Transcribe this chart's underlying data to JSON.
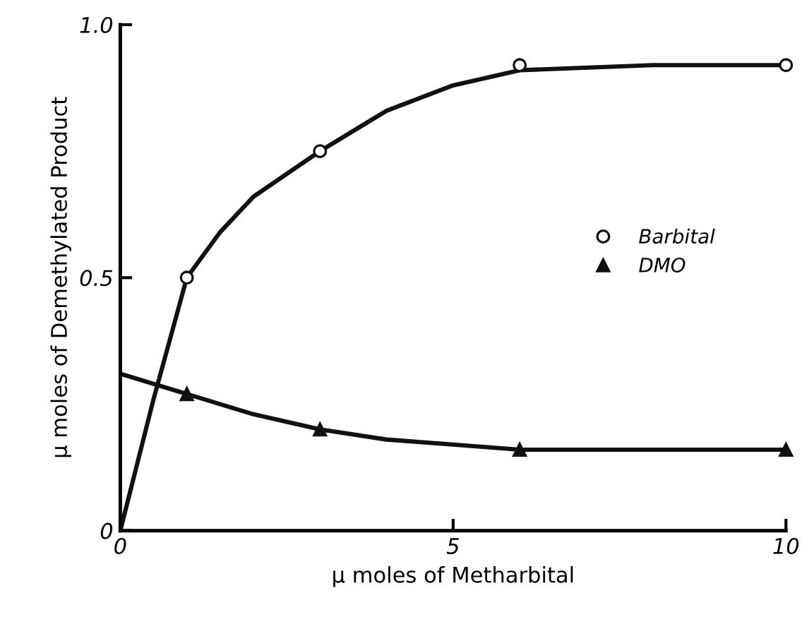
{
  "chart_data": {
    "type": "scatter",
    "xlabel": "µ moles of Metharbital",
    "ylabel": "µ moles of Demethylated Product",
    "xlim": [
      0,
      10
    ],
    "ylim": [
      0,
      1.0
    ],
    "xticks": [
      0,
      5,
      10
    ],
    "yticks": [
      {
        "value": 0,
        "label": "0"
      },
      0.5,
      {
        "value": 1.0,
        "label": "1.0"
      }
    ],
    "grid": false,
    "legend": "center right",
    "series": [
      {
        "type": "line",
        "color": "#111111",
        "marker": "none",
        "line_style": "solid",
        "x": [
          0,
          0.5,
          1,
          1.5,
          2,
          3,
          4,
          5,
          6,
          8,
          10
        ],
        "values": [
          0,
          0.26,
          0.5,
          0.59,
          0.66,
          0.75,
          0.83,
          0.88,
          0.91,
          0.92,
          0.92
        ]
      },
      {
        "type": "line",
        "color": "#111111",
        "marker": "none",
        "line_style": "solid",
        "x": [
          0,
          1,
          2,
          3,
          4,
          5,
          6,
          8,
          10
        ],
        "values": [
          0.31,
          0.27,
          0.23,
          0.2,
          0.18,
          0.17,
          0.16,
          0.16,
          0.16
        ]
      },
      {
        "name": "Barbital",
        "color": "#111111",
        "marker": "circle",
        "x": [
          1,
          3,
          6,
          10
        ],
        "values": [
          0.5,
          0.75,
          0.92,
          0.92
        ]
      },
      {
        "name": "DMO",
        "color": "#111111",
        "marker": "triangle",
        "x": [
          1,
          3,
          6,
          10
        ],
        "values": [
          0.27,
          0.2,
          0.16,
          0.16
        ]
      }
    ]
  }
}
